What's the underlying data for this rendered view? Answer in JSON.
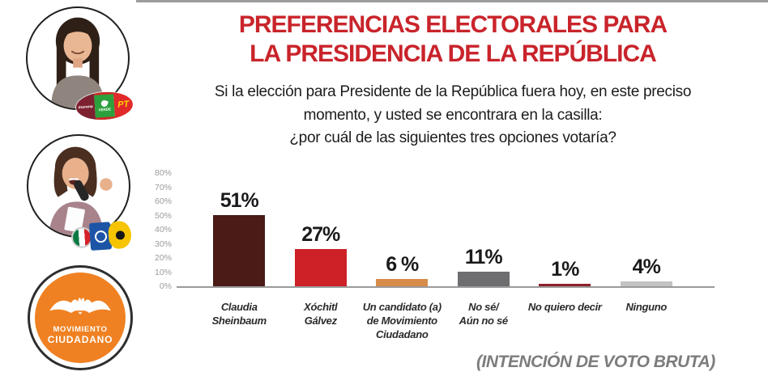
{
  "header": {
    "title_line1": "PREFERENCIAS ELECTORALES PARA",
    "title_line2": "LA PRESIDENCIA DE LA REPÚBLICA",
    "question_line1": "Si la elección para Presidente de la República fuera hoy, en este preciso",
    "question_line2": "momento, y usted se encontrara en la casilla:",
    "question_line3": "¿por cuál de las siguientes tres opciones votaría?"
  },
  "sidebar": {
    "candidates": [
      {
        "photo": "claudia-sheinbaum-photo",
        "coalition_parties": [
          "morena",
          "VERDE",
          "PT"
        ]
      },
      {
        "photo": "xochitl-galvez-photo",
        "coalition_parties": [
          "PRI",
          "PAN",
          "PRD"
        ]
      },
      {
        "photo": "movimiento-ciudadano-logo",
        "coalition_parties": [
          "Movimiento Ciudadano"
        ]
      }
    ]
  },
  "party_badges": {
    "morena_label": "morena",
    "verde_label": "VERDE",
    "pt_label": "PT",
    "mc_line1": "MOVIMIENTO",
    "mc_line2": "CIUDADANO"
  },
  "chart_data": {
    "type": "bar",
    "title": "PREFERENCIAS ELECTORALES PARA LA PRESIDENCIA DE LA REPÚBLICA",
    "categories": [
      "Claudia Sheinbaum",
      "Xóchitl Gálvez",
      "Un candidato (a) de Movimiento Ciudadano",
      "No sé/ Aún no sé",
      "No quiero decir",
      "Ninguno"
    ],
    "category_lines": [
      [
        "Claudia",
        "Sheinbaum"
      ],
      [
        "Xóchitl",
        "Gálvez"
      ],
      [
        "Un candidato (a)",
        "de Movimiento",
        "Ciudadano"
      ],
      [
        "No sé/",
        "Aún no sé"
      ],
      [
        "No quiero decir"
      ],
      [
        "Ninguno"
      ]
    ],
    "values": [
      51,
      27,
      6,
      11,
      1,
      4
    ],
    "value_labels": [
      "51%",
      "27%",
      "6 %",
      "11%",
      "1%",
      "4%"
    ],
    "bar_colors": [
      "#4a1b17",
      "#cd2127",
      "#d78d49",
      "#6e6e70",
      "#8e1f2a",
      "#c3c3c3"
    ],
    "y_ticks": [
      "80%",
      "70%",
      "60%",
      "50%",
      "40%",
      "30%",
      "20%",
      "10%",
      "0%"
    ],
    "ylim": [
      0,
      80
    ],
    "grid": false,
    "legend": false,
    "xlabel": "",
    "ylabel": ""
  },
  "footer": {
    "note": "(INTENCIÓN DE VOTO BRUTA)"
  },
  "colors": {
    "title_red": "#c9242b",
    "mc_orange": "#ef8122",
    "axis_gray": "#9a9a9a"
  }
}
